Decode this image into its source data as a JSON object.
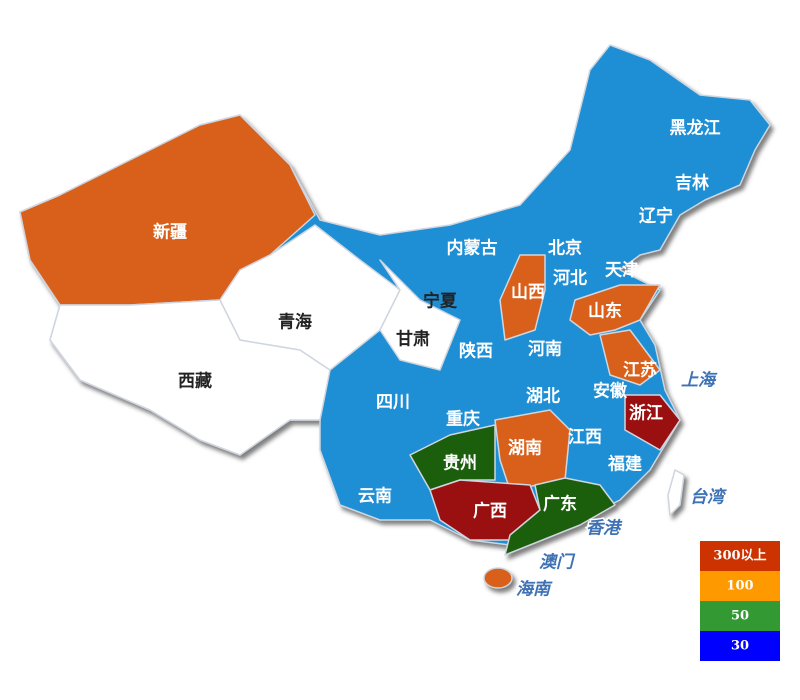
{
  "regions": [
    {
      "name": "新疆",
      "color": "#d8601a"
    },
    {
      "name": "西藏",
      "color": "#ffffff"
    },
    {
      "name": "青海",
      "color": "#ffffff"
    },
    {
      "name": "甘肃",
      "color": "#ffffff"
    },
    {
      "name": "内蒙古",
      "color": "#1e8fd5"
    },
    {
      "name": "黑龙江",
      "color": "#1e8fd5"
    },
    {
      "name": "吉林",
      "color": "#1e8fd5"
    },
    {
      "name": "辽宁",
      "color": "#1e8fd5"
    },
    {
      "name": "北京",
      "color": "#1e8fd5"
    },
    {
      "name": "天津",
      "color": "#1e8fd5"
    },
    {
      "name": "河北",
      "color": "#1e8fd5"
    },
    {
      "name": "宁夏",
      "color": "#ffffff"
    },
    {
      "name": "山西",
      "color": "#d8601a"
    },
    {
      "name": "山东",
      "color": "#d8601a"
    },
    {
      "name": "陕西",
      "color": "#1e8fd5"
    },
    {
      "name": "河南",
      "color": "#1e8fd5"
    },
    {
      "name": "江苏",
      "color": "#d8601a"
    },
    {
      "name": "上海",
      "color": "#1e8fd5"
    },
    {
      "name": "安徽",
      "color": "#1e8fd5"
    },
    {
      "name": "四川",
      "color": "#1e8fd5"
    },
    {
      "name": "湖北",
      "color": "#1e8fd5"
    },
    {
      "name": "重庆",
      "color": "#1e8fd5"
    },
    {
      "name": "浙江",
      "color": "#9a1010"
    },
    {
      "name": "湖南",
      "color": "#d8601a"
    },
    {
      "name": "江西",
      "color": "#1e8fd5"
    },
    {
      "name": "贵州",
      "color": "#1b5e0c"
    },
    {
      "name": "福建",
      "color": "#1e8fd5"
    },
    {
      "name": "云南",
      "color": "#1e8fd5"
    },
    {
      "name": "广西",
      "color": "#9a1010"
    },
    {
      "name": "广东",
      "color": "#1b5e0c"
    },
    {
      "name": "台湾",
      "color": "#ffffff"
    },
    {
      "name": "香港",
      "color": "#1e8fd5"
    },
    {
      "name": "澳门",
      "color": "#1e8fd5"
    },
    {
      "name": "海南",
      "color": "#d8601a"
    }
  ],
  "legend": [
    {
      "label": "300以上",
      "color": "#cc3300"
    },
    {
      "label": "100",
      "color": "#ff9900"
    },
    {
      "label": "50",
      "color": "#339933"
    },
    {
      "label": "30",
      "color": "#0000ff"
    }
  ]
}
